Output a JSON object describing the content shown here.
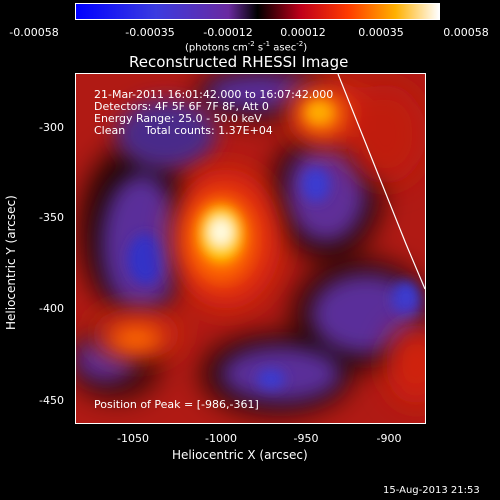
{
  "colorbar": {
    "ticks": [
      "-0.00058",
      "-0.00035",
      "-0.00012",
      "0.00012",
      "0.00035",
      "0.00058"
    ],
    "units_prefix": "(photons cm",
    "units_exp1": "-2",
    "units_mid1": " s",
    "units_exp2": "-1",
    "units_mid2": " asec",
    "units_exp3": "-2",
    "units_suffix": ")"
  },
  "plot": {
    "title": "Reconstructed RHESSI Image",
    "xlabel": "Heliocentric X (arcsec)",
    "ylabel": "Heliocentric Y (arcsec)",
    "xticks": [
      "-1050",
      "-1000",
      "-950",
      "-900"
    ],
    "yticks": [
      "-300",
      "-350",
      "-400",
      "-450"
    ],
    "info": {
      "line1": "21-Mar-2011 16:01:42.000 to 16:07:42.000",
      "line2": "Detectors: 4F 5F 6F 7F 8F, Att 0",
      "line3": "Energy Range: 25.0 - 50.0 keV",
      "line4_a": "Clean",
      "line4_b": "Total counts: 1.37E+04"
    },
    "peak": "Position of Peak = [-986,-361]"
  },
  "footer": {
    "timestamp": "15-Aug-2013 21:53"
  }
}
